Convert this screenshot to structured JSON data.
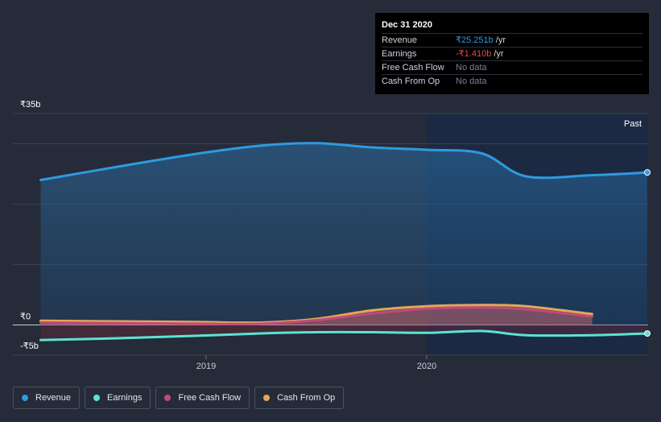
{
  "chart_data": {
    "type": "area",
    "x_ticks": [
      "2019",
      "2020"
    ],
    "y_ticks": [
      "₹35b",
      "₹0",
      "-₹5b"
    ],
    "ylim": [
      -5,
      35
    ],
    "forecast_label": "Past",
    "series": [
      {
        "name": "Revenue",
        "color": "#2f9ae0",
        "points": [
          [
            2018.25,
            24.0
          ],
          [
            2018.6,
            26.2
          ],
          [
            2018.95,
            28.3
          ],
          [
            2019.25,
            29.7
          ],
          [
            2019.5,
            30.1
          ],
          [
            2019.75,
            29.4
          ],
          [
            2020.0,
            29.0
          ],
          [
            2020.25,
            28.4
          ],
          [
            2020.45,
            24.6
          ],
          [
            2020.75,
            24.8
          ],
          [
            2021.0,
            25.251
          ]
        ]
      },
      {
        "name": "Earnings",
        "color": "#5be3d4",
        "points": [
          [
            2018.25,
            -2.5
          ],
          [
            2018.6,
            -2.2
          ],
          [
            2018.95,
            -1.8
          ],
          [
            2019.25,
            -1.4
          ],
          [
            2019.5,
            -1.2
          ],
          [
            2019.75,
            -1.2
          ],
          [
            2020.0,
            -1.3
          ],
          [
            2020.25,
            -1.0
          ],
          [
            2020.45,
            -1.7
          ],
          [
            2020.75,
            -1.7
          ],
          [
            2021.0,
            -1.41
          ]
        ]
      },
      {
        "name": "Free Cash Flow",
        "color": "#c2497a",
        "points": [
          [
            2018.25,
            0.4
          ],
          [
            2018.6,
            0.3
          ],
          [
            2018.95,
            0.2
          ],
          [
            2019.25,
            0.2
          ],
          [
            2019.5,
            0.8
          ],
          [
            2019.75,
            1.9
          ],
          [
            2020.0,
            2.7
          ],
          [
            2020.25,
            2.9
          ],
          [
            2020.45,
            2.6
          ],
          [
            2020.75,
            1.4
          ]
        ]
      },
      {
        "name": "Cash From Op",
        "color": "#e3a857",
        "points": [
          [
            2018.25,
            0.7
          ],
          [
            2018.6,
            0.6
          ],
          [
            2018.95,
            0.5
          ],
          [
            2019.25,
            0.4
          ],
          [
            2019.5,
            1.0
          ],
          [
            2019.75,
            2.4
          ],
          [
            2020.0,
            3.1
          ],
          [
            2020.25,
            3.3
          ],
          [
            2020.45,
            3.1
          ],
          [
            2020.75,
            1.8
          ]
        ]
      }
    ]
  },
  "tooltip": {
    "date": "Dec 31 2020",
    "rows": [
      {
        "label": "Revenue",
        "value": "₹25.251b",
        "unit": "/yr"
      },
      {
        "label": "Earnings",
        "value": "-₹1.410b",
        "unit": "/yr"
      },
      {
        "label": "Free Cash Flow",
        "value": "No data"
      },
      {
        "label": "Cash From Op",
        "value": "No data"
      }
    ]
  },
  "legend": [
    {
      "label": "Revenue",
      "color": "#2f9ae0"
    },
    {
      "label": "Earnings",
      "color": "#5be3d4"
    },
    {
      "label": "Free Cash Flow",
      "color": "#c2497a"
    },
    {
      "label": "Cash From Op",
      "color": "#e3a857"
    }
  ]
}
